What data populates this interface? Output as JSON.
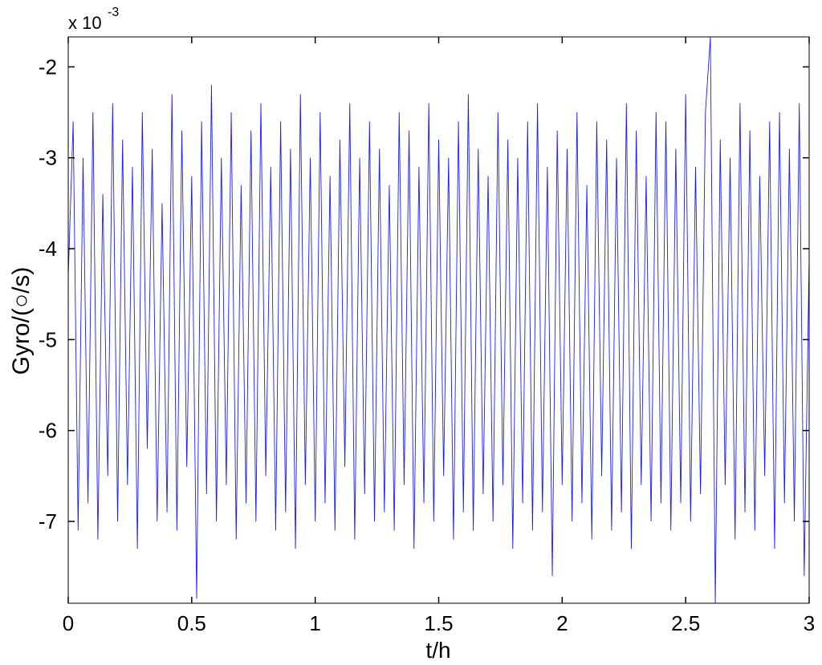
{
  "chart_data": {
    "type": "line",
    "xlabel": "t/h",
    "ylabel": "Gyro/(○/s)",
    "y_multiplier": {
      "base": "x 10",
      "exponent": "-3"
    },
    "color": "#1a1aff",
    "xlim": [
      0,
      3
    ],
    "xticks": [
      0,
      0.5,
      1,
      1.5,
      2,
      2.5,
      3
    ],
    "ylim": [
      -7.9,
      -1.67
    ],
    "yticks": [
      -7,
      -6,
      -5,
      -4,
      -3,
      -2
    ],
    "x": [
      0,
      0.02,
      0.04,
      0.06,
      0.08,
      0.1,
      0.12,
      0.14,
      0.16,
      0.18,
      0.2,
      0.22,
      0.24,
      0.26,
      0.28,
      0.3,
      0.32,
      0.34,
      0.36,
      0.38,
      0.4,
      0.42,
      0.44,
      0.46,
      0.48,
      0.5,
      0.52,
      0.54,
      0.56,
      0.58,
      0.6,
      0.62,
      0.64,
      0.66,
      0.68,
      0.7,
      0.72,
      0.74,
      0.76,
      0.78,
      0.8,
      0.82,
      0.84,
      0.86,
      0.88,
      0.9,
      0.92,
      0.94,
      0.96,
      0.98,
      1,
      1.02,
      1.04,
      1.06,
      1.08,
      1.1,
      1.12,
      1.14,
      1.16,
      1.18,
      1.2,
      1.22,
      1.24,
      1.26,
      1.28,
      1.3,
      1.32,
      1.34,
      1.36,
      1.38,
      1.4,
      1.42,
      1.44,
      1.46,
      1.48,
      1.5,
      1.52,
      1.54,
      1.56,
      1.58,
      1.6,
      1.62,
      1.64,
      1.66,
      1.68,
      1.7,
      1.72,
      1.74,
      1.76,
      1.78,
      1.8,
      1.82,
      1.84,
      1.86,
      1.88,
      1.9,
      1.92,
      1.94,
      1.96,
      1.98,
      2,
      2.02,
      2.04,
      2.06,
      2.08,
      2.1,
      2.12,
      2.14,
      2.16,
      2.18,
      2.2,
      2.22,
      2.24,
      2.26,
      2.28,
      2.3,
      2.32,
      2.34,
      2.36,
      2.38,
      2.4,
      2.42,
      2.44,
      2.46,
      2.48,
      2.5,
      2.52,
      2.54,
      2.56,
      2.58,
      2.6,
      2.62,
      2.64,
      2.66,
      2.68,
      2.7,
      2.72,
      2.74,
      2.76,
      2.78,
      2.8,
      2.82,
      2.84,
      2.86,
      2.88,
      2.9,
      2.92,
      2.94,
      2.96,
      2.98,
      3
    ],
    "values": [
      -4.3,
      -2.6,
      -7.1,
      -3.0,
      -6.8,
      -2.5,
      -7.2,
      -3.4,
      -6.5,
      -2.4,
      -7.0,
      -2.8,
      -6.6,
      -3.1,
      -7.3,
      -2.5,
      -6.2,
      -2.9,
      -7.0,
      -3.5,
      -6.9,
      -2.3,
      -7.1,
      -2.7,
      -6.4,
      -3.2,
      -7.85,
      -2.6,
      -6.7,
      -2.2,
      -7.0,
      -3.0,
      -6.6,
      -2.5,
      -7.2,
      -3.3,
      -6.8,
      -2.7,
      -7.0,
      -2.4,
      -6.5,
      -3.1,
      -7.1,
      -2.6,
      -6.9,
      -2.9,
      -7.3,
      -2.3,
      -6.6,
      -3.0,
      -7.0,
      -2.5,
      -6.8,
      -3.2,
      -7.1,
      -2.8,
      -6.4,
      -2.4,
      -7.2,
      -3.0,
      -6.7,
      -2.6,
      -7.0,
      -2.9,
      -6.9,
      -3.3,
      -7.1,
      -2.5,
      -6.6,
      -2.7,
      -7.3,
      -3.1,
      -6.8,
      -2.4,
      -7.0,
      -2.8,
      -6.5,
      -3.0,
      -7.2,
      -2.6,
      -6.9,
      -2.3,
      -7.1,
      -2.9,
      -6.7,
      -3.2,
      -7.0,
      -2.5,
      -6.6,
      -2.8,
      -7.3,
      -3.0,
      -6.8,
      -2.6,
      -7.1,
      -2.4,
      -6.9,
      -3.1,
      -7.6,
      -2.7,
      -6.6,
      -2.9,
      -7.0,
      -2.5,
      -6.8,
      -3.3,
      -7.2,
      -2.6,
      -6.5,
      -2.8,
      -7.1,
      -3.0,
      -6.9,
      -2.4,
      -7.3,
      -2.7,
      -6.6,
      -3.2,
      -7.0,
      -2.5,
      -6.8,
      -2.6,
      -7.1,
      -2.9,
      -6.8,
      -2.3,
      -7.0,
      -3.1,
      -6.7,
      -2.5,
      -1.67,
      -7.9,
      -2.8,
      -6.6,
      -3.0,
      -7.2,
      -2.4,
      -6.9,
      -2.7,
      -7.1,
      -3.2,
      -6.5,
      -2.6,
      -7.3,
      -2.5,
      -6.8,
      -2.9,
      -7.0,
      -2.4,
      -7.6,
      -4.1
    ]
  }
}
